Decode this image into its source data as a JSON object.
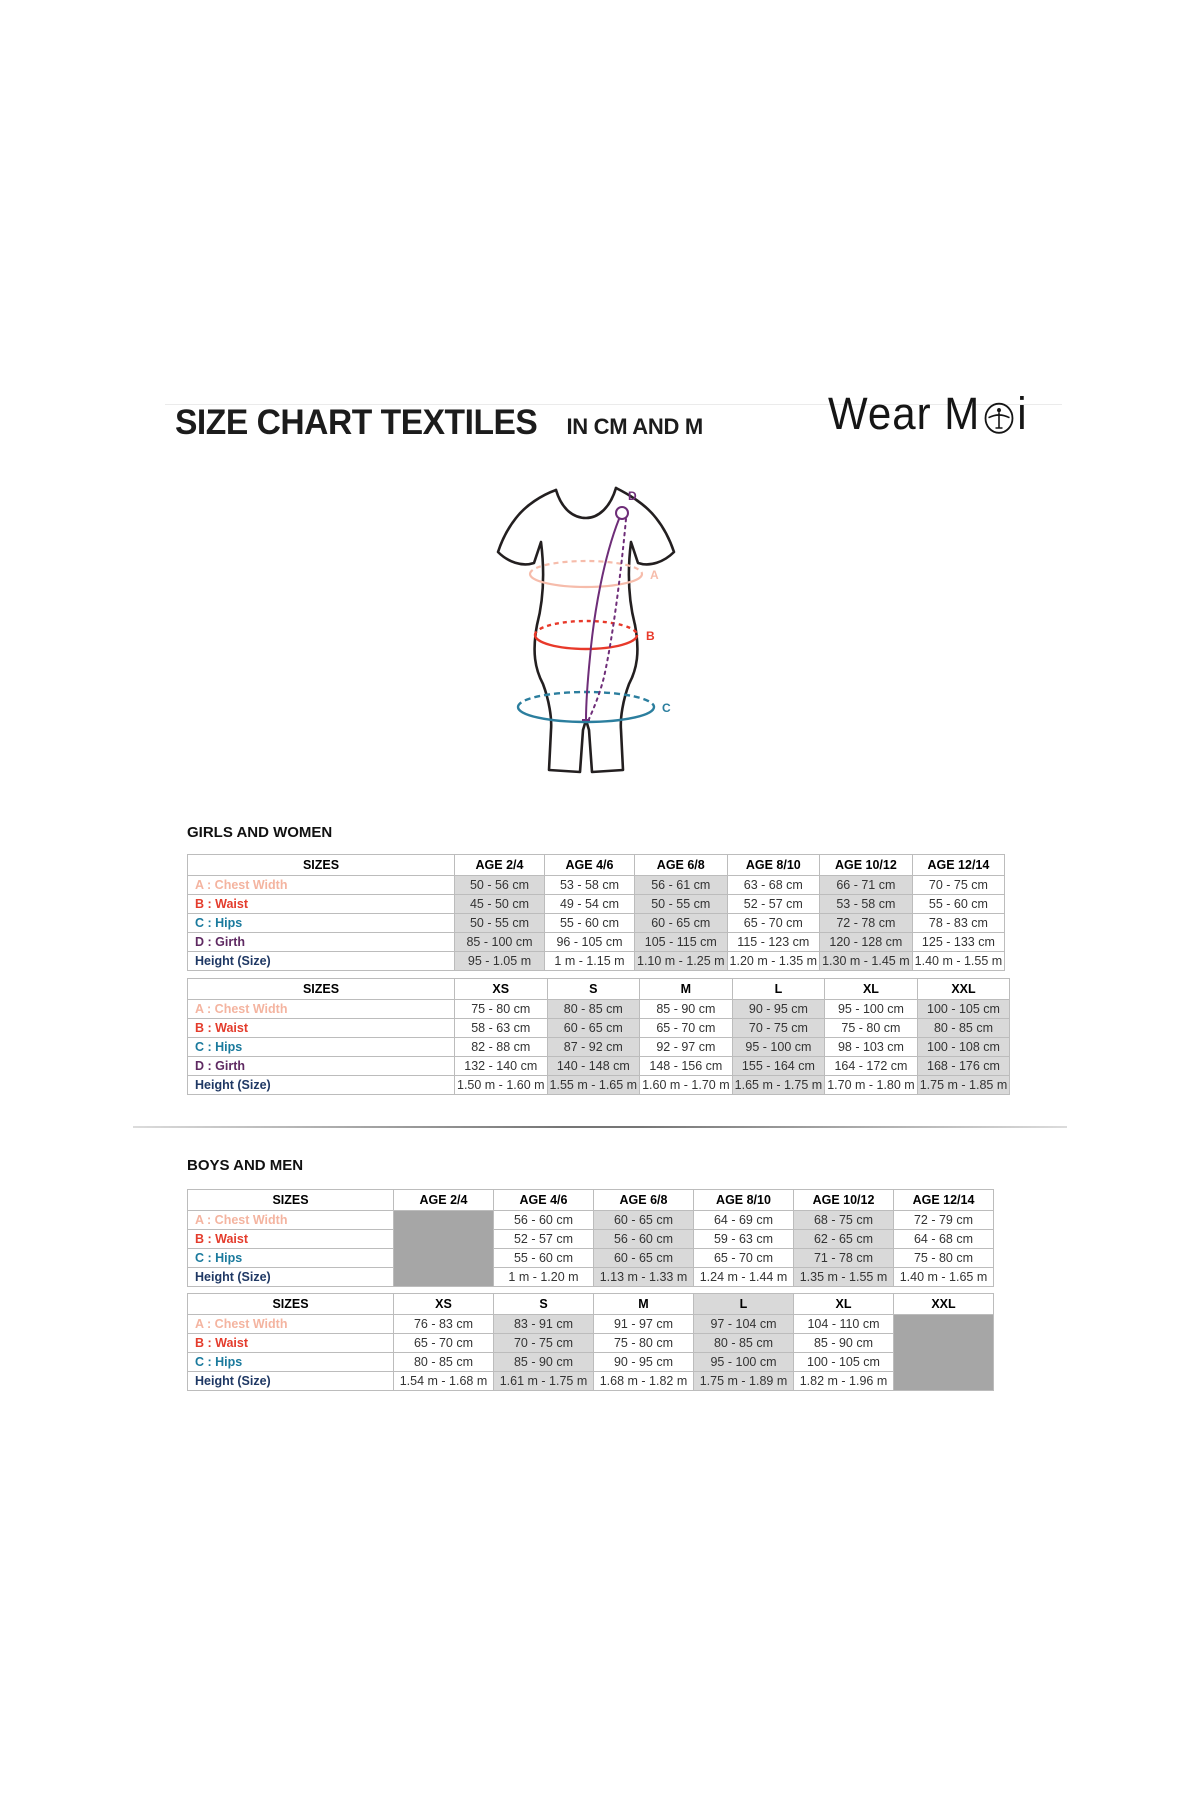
{
  "page": {
    "title": "SIZE CHART TEXTILES",
    "subtitle": "IN CM AND M",
    "brand_prefix": "Wear M",
    "brand_suffix": "i"
  },
  "diagram": {
    "labels": {
      "a": "A",
      "b": "B",
      "c": "C",
      "d": "D"
    },
    "colors": {
      "chest_line": "#f6bcab",
      "waist_line": "#e8392a",
      "hips_line": "#2b7e9e",
      "girth_line": "#6e2d78",
      "outline": "#231f20"
    }
  },
  "label_colors": {
    "chest": "#f4b4a0",
    "waist": "#e43c2c",
    "hips": "#1a7a9d",
    "girth": "#5f2a62",
    "height": "#1f3864"
  },
  "sections": [
    {
      "heading": "GIRLS AND WOMEN",
      "tables": [
        {
          "headers": [
            "SIZES",
            "AGE 2/4",
            "AGE 4/6",
            "AGE 6/8",
            "AGE 8/10",
            "AGE 10/12",
            "AGE 12/14"
          ],
          "label_col_width": 267,
          "data_col_width": 90,
          "shaded_cols": [
            1,
            3,
            5
          ],
          "header_shaded_cols": [],
          "blocked_col": null,
          "rows": [
            {
              "label": "A : Chest Width",
              "color_key": "chest",
              "values": [
                "50 - 56 cm",
                "53 - 58 cm",
                "56 - 61 cm",
                "63 - 68 cm",
                "66 - 71 cm",
                "70 - 75 cm"
              ]
            },
            {
              "label": "B : Waist",
              "color_key": "waist",
              "values": [
                "45 - 50 cm",
                "49 - 54 cm",
                "50 - 55 cm",
                "52 - 57 cm",
                "53 - 58 cm",
                "55 - 60 cm"
              ]
            },
            {
              "label": "C : Hips",
              "color_key": "hips",
              "values": [
                "50 - 55 cm",
                "55 - 60 cm",
                "60 - 65 cm",
                "65 - 70 cm",
                "72 - 78 cm",
                "78 - 83 cm"
              ]
            },
            {
              "label": "D : Girth",
              "color_key": "girth",
              "values": [
                "85 - 100 cm",
                "96 - 105 cm",
                "105 - 115 cm",
                "115 - 123 cm",
                "120 - 128 cm",
                "125 - 133 cm"
              ]
            },
            {
              "label": "Height (Size)",
              "color_key": "height",
              "values": [
                "95 - 1.05 m",
                "1 m - 1.15 m",
                "1.10 m - 1.25 m",
                "1.20 m - 1.35 m",
                "1.30 m - 1.45 m",
                "1.40 m - 1.55 m"
              ]
            }
          ]
        },
        {
          "headers": [
            "SIZES",
            "XS",
            "S",
            "M",
            "L",
            "XL",
            "XXL"
          ],
          "label_col_width": 267,
          "data_col_width": 90,
          "shaded_cols": [
            2,
            4,
            6
          ],
          "header_shaded_cols": [],
          "blocked_col": null,
          "rows": [
            {
              "label": "A : Chest Width",
              "color_key": "chest",
              "values": [
                "75 - 80 cm",
                "80 - 85 cm",
                "85 - 90 cm",
                "90 - 95 cm",
                "95 - 100 cm",
                "100 - 105 cm"
              ]
            },
            {
              "label": "B : Waist",
              "color_key": "waist",
              "values": [
                "58 - 63 cm",
                "60 - 65 cm",
                "65 - 70 cm",
                "70 - 75 cm",
                "75 - 80 cm",
                "80 - 85 cm"
              ]
            },
            {
              "label": "C : Hips",
              "color_key": "hips",
              "values": [
                "82 - 88 cm",
                "87 - 92 cm",
                "92 - 97 cm",
                "95 - 100 cm",
                "98 - 103 cm",
                "100 - 108 cm"
              ]
            },
            {
              "label": "D : Girth",
              "color_key": "girth",
              "values": [
                "132 - 140 cm",
                "140 - 148 cm",
                "148 - 156 cm",
                "155 - 164 cm",
                "164 - 172 cm",
                "168 - 176 cm"
              ]
            },
            {
              "label": "Height (Size)",
              "color_key": "height",
              "values": [
                "1.50 m - 1.60 m",
                "1.55 m - 1.65 m",
                "1.60 m - 1.70 m",
                "1.65 m - 1.75 m",
                "1.70 m - 1.80 m",
                "1.75 m - 1.85 m"
              ]
            }
          ]
        }
      ]
    },
    {
      "heading": "BOYS AND MEN",
      "tables": [
        {
          "headers": [
            "SIZES",
            "AGE 2/4",
            "AGE 4/6",
            "AGE 6/8",
            "AGE 8/10",
            "AGE 10/12",
            "AGE 12/14"
          ],
          "label_col_width": 206,
          "data_col_width": 100,
          "shaded_cols": [
            3,
            5
          ],
          "header_shaded_cols": [],
          "blocked_col": 1,
          "rows": [
            {
              "label": "A : Chest Width",
              "color_key": "chest",
              "values": [
                null,
                "56 - 60 cm",
                "60 - 65 cm",
                "64 - 69 cm",
                "68 - 75 cm",
                "72 - 79 cm"
              ]
            },
            {
              "label": "B : Waist",
              "color_key": "waist",
              "values": [
                null,
                "52 - 57 cm",
                "56 - 60 cm",
                "59 - 63 cm",
                "62 - 65 cm",
                "64 - 68 cm"
              ]
            },
            {
              "label": "C : Hips",
              "color_key": "hips",
              "values": [
                null,
                "55 - 60 cm",
                "60 - 65 cm",
                "65 - 70 cm",
                "71 - 78 cm",
                "75 - 80 cm"
              ]
            },
            {
              "label": "Height (Size)",
              "color_key": "height",
              "values": [
                null,
                "1 m - 1.20 m",
                "1.13 m - 1.33 m",
                "1.24 m - 1.44 m",
                "1.35 m - 1.55 m",
                "1.40 m - 1.65 m"
              ]
            }
          ]
        },
        {
          "headers": [
            "SIZES",
            "XS",
            "S",
            "M",
            "L",
            "XL",
            "XXL"
          ],
          "label_col_width": 206,
          "data_col_width": 100,
          "shaded_cols": [
            2,
            4
          ],
          "header_shaded_cols": [
            4
          ],
          "blocked_col": 6,
          "rows": [
            {
              "label": "A : Chest Width",
              "color_key": "chest",
              "values": [
                "76 - 83 cm",
                "83 - 91 cm",
                "91 - 97 cm",
                "97 - 104 cm",
                "104 - 110 cm",
                null
              ]
            },
            {
              "label": "B : Waist",
              "color_key": "waist",
              "values": [
                "65 - 70 cm",
                "70 - 75 cm",
                "75 - 80 cm",
                "80 - 85 cm",
                "85 - 90 cm",
                null
              ]
            },
            {
              "label": "C : Hips",
              "color_key": "hips",
              "values": [
                "80 - 85 cm",
                "85 - 90 cm",
                "90 - 95 cm",
                "95 - 100 cm",
                "100 - 105 cm",
                null
              ]
            },
            {
              "label": "Height (Size)",
              "color_key": "height",
              "values": [
                "1.54 m - 1.68 m",
                "1.61 m - 1.75 m",
                "1.68 m - 1.82 m",
                "1.75 m - 1.89 m",
                "1.82 m - 1.96 m",
                null
              ]
            }
          ]
        }
      ]
    }
  ]
}
